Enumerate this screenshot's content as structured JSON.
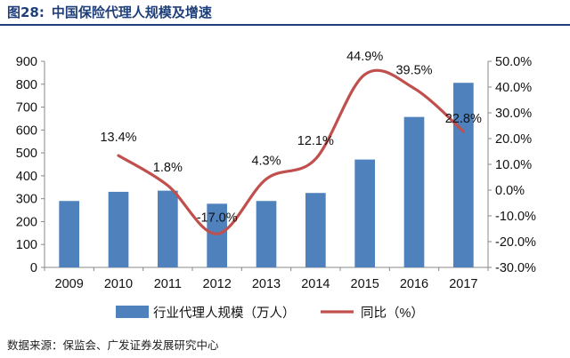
{
  "figure": {
    "number": "图28:",
    "title": "中国保险代理人规模及增速"
  },
  "source": "数据来源：保监会、广发证券发展研究中心",
  "chart_data": {
    "type": "bar+line",
    "categories": [
      "2009",
      "2010",
      "2011",
      "2012",
      "2013",
      "2014",
      "2015",
      "2016",
      "2017"
    ],
    "series": [
      {
        "name": "行业代理人规模（万人）",
        "type": "bar",
        "axis": "left",
        "color": "#4f81bd",
        "values": [
          290,
          330,
          335,
          278,
          290,
          325,
          471,
          657,
          806
        ]
      },
      {
        "name": "同比（%）",
        "type": "line",
        "axis": "right",
        "color": "#c0504d",
        "values": [
          null,
          13.4,
          1.8,
          -17.0,
          4.3,
          12.1,
          44.9,
          39.5,
          22.8
        ],
        "labels": [
          null,
          "13.4%",
          "1.8%",
          "-17.0%",
          "4.3%",
          "12.1%",
          "44.9%",
          "39.5%",
          "22.8%"
        ]
      }
    ],
    "left_axis": {
      "min": 0,
      "max": 900,
      "step": 100,
      "ticks": [
        "0",
        "100",
        "200",
        "300",
        "400",
        "500",
        "600",
        "700",
        "800",
        "900"
      ]
    },
    "right_axis": {
      "min": -30,
      "max": 50,
      "step": 10,
      "ticks": [
        "-30.0%",
        "-20.0%",
        "-10.0%",
        "0.0%",
        "10.0%",
        "20.0%",
        "30.0%",
        "40.0%",
        "50.0%"
      ]
    },
    "grid": false,
    "legend_position": "bottom"
  }
}
